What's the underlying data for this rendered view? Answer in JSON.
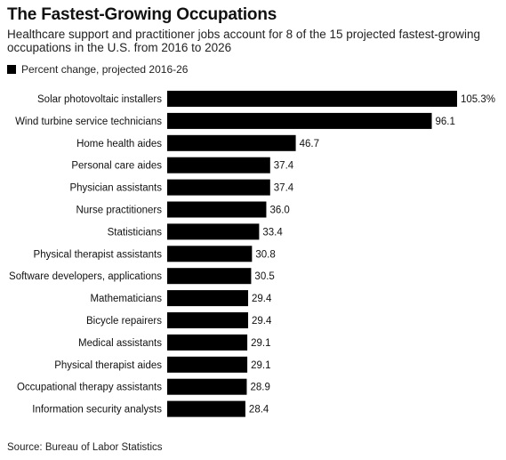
{
  "title": "The Fastest-Growing Occupations",
  "subtitle": "Healthcare support and practitioner jobs account for 8 of the 15 projected fastest-growing occupations in the U.S. from 2016 to 2026",
  "legend": {
    "label": "Percent change, projected 2016-26"
  },
  "source": "Source: Bureau of Labor Statistics",
  "colors": {
    "bar": "#000000",
    "text": "#111111"
  },
  "chart_data": {
    "type": "bar",
    "orientation": "horizontal",
    "categories": [
      "Solar photovoltaic installers",
      "Wind turbine service technicians",
      "Home health aides",
      "Personal care aides",
      "Physician assistants",
      "Nurse practitioners",
      "Statisticians",
      "Physical therapist assistants",
      "Software developers, applications",
      "Mathematicians",
      "Bicycle repairers",
      "Medical assistants",
      "Physical therapist aides",
      "Occupational therapy assistants",
      "Information security analysts"
    ],
    "values": [
      105.3,
      96.1,
      46.7,
      37.4,
      37.4,
      36.0,
      33.4,
      30.8,
      30.5,
      29.4,
      29.4,
      29.1,
      29.1,
      28.9,
      28.4
    ],
    "value_labels": [
      "105.3%",
      "96.1",
      "46.7",
      "37.4",
      "37.4",
      "36.0",
      "33.4",
      "30.8",
      "30.5",
      "29.4",
      "29.4",
      "29.1",
      "29.1",
      "28.9",
      "28.4"
    ],
    "series": [
      {
        "name": "Percent change, projected 2016-26",
        "values": [
          105.3,
          96.1,
          46.7,
          37.4,
          37.4,
          36.0,
          33.4,
          30.8,
          30.5,
          29.4,
          29.4,
          29.1,
          29.1,
          28.9,
          28.4
        ]
      }
    ],
    "xlim": [
      0,
      105.3
    ],
    "grid": false,
    "legend_position": "top-left"
  }
}
